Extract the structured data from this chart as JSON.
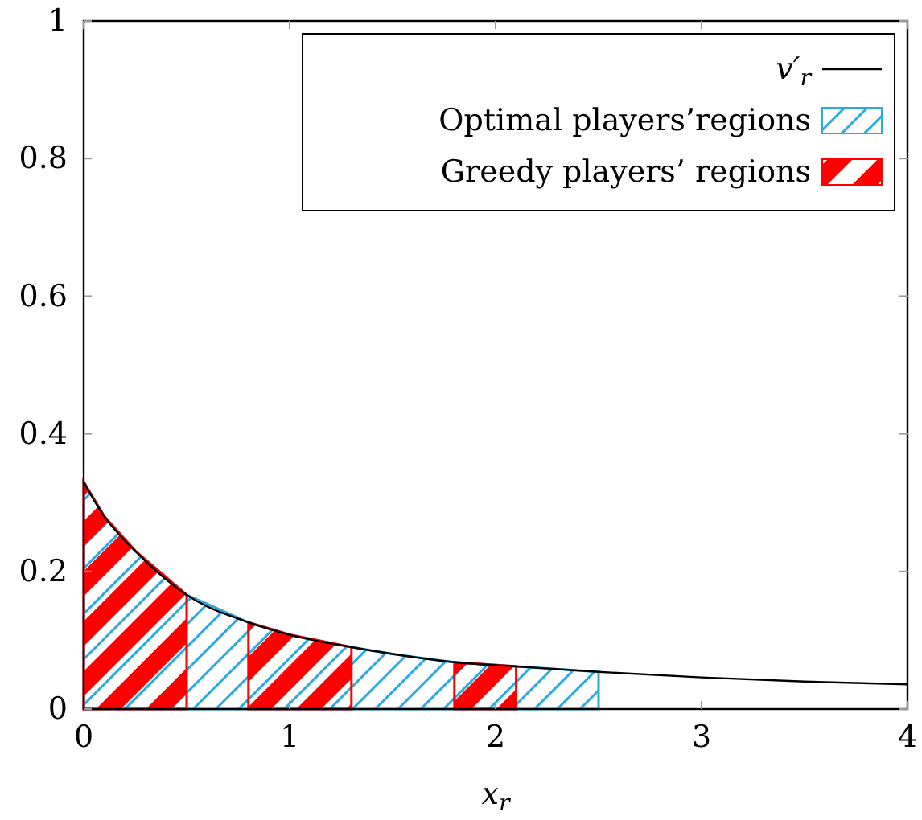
{
  "chart_data": {
    "type": "area",
    "xlabel": "x$_{r}$",
    "xlim": [
      0,
      4
    ],
    "ylim": [
      0,
      1
    ],
    "xticks": [
      0,
      1,
      2,
      3,
      4
    ],
    "yticks": [
      0,
      0.2,
      0.4,
      0.6,
      0.8,
      1
    ],
    "grid": false,
    "legend": "top right",
    "series": [
      {
        "name": "v′$_{r}$",
        "type": "line",
        "color": "#000000",
        "x": [
          0,
          0.1,
          0.25,
          0.5,
          0.8,
          1,
          1.3,
          1.5,
          1.8,
          2.1,
          2.5,
          3,
          3.5,
          4
        ],
        "values": [
          0.33,
          0.28,
          0.23,
          0.166,
          0.126,
          0.108,
          0.09,
          0.08,
          0.068,
          0.062,
          0.054,
          0.046,
          0.04,
          0.036
        ]
      },
      {
        "name": "Optimal players’regions",
        "color": "#29abe2",
        "x": [
          0,
          0.1,
          0.25,
          0.5,
          0.8,
          1,
          1.3,
          1.5,
          1.8,
          2.1,
          2.5
        ],
        "values": [
          0.33,
          0.28,
          0.23,
          0.166,
          0.126,
          0.108,
          0.09,
          0.08,
          0.068,
          0.062,
          0.054
        ]
      },
      {
        "name": "Greedy players’ regions",
        "color": "#ff0000",
        "x": [
          0,
          0.1,
          0.25,
          0.5,
          0.65,
          0.8,
          1,
          1.3,
          1.5,
          1.8,
          2.1
        ],
        "values": [
          0.33,
          0.28,
          0.23,
          0.166,
          null,
          0.126,
          0.108,
          0.09,
          null,
          0.068,
          0.062
        ]
      }
    ]
  }
}
